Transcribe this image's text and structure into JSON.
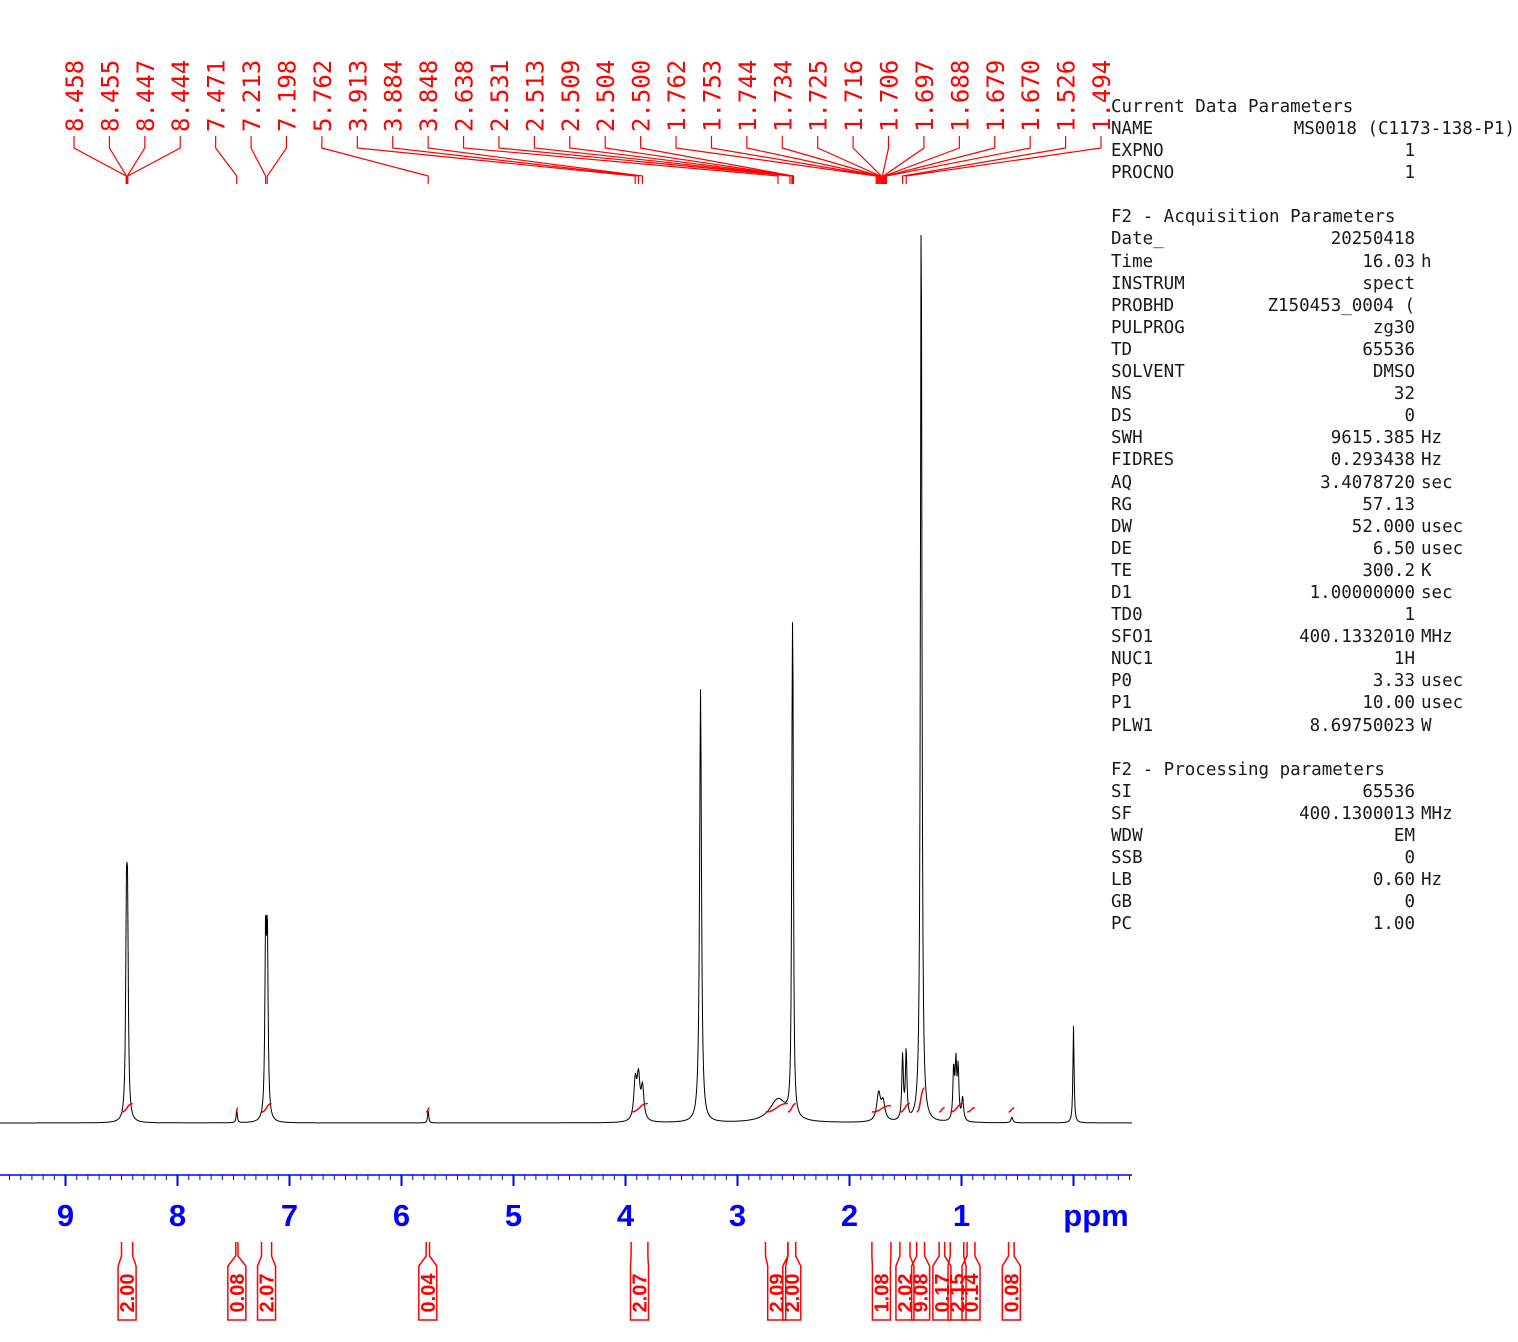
{
  "chart_data": {
    "type": "line",
    "title": "",
    "xlabel": "ppm",
    "ylabel": "",
    "xlim": [
      9.5,
      -0.5
    ],
    "x_ticks": [
      9,
      8,
      7,
      6,
      5,
      4,
      3,
      2,
      1
    ],
    "x_tick_labels": [
      "9",
      "8",
      "7",
      "6",
      "5",
      "4",
      "3",
      "2",
      "1"
    ],
    "peak_labels": [
      "8.458",
      "8.455",
      "8.447",
      "8.444",
      "7.471",
      "7.213",
      "7.198",
      "5.762",
      "3.913",
      "3.884",
      "3.848",
      "2.638",
      "2.531",
      "2.513",
      "2.509",
      "2.504",
      "2.500",
      "1.762",
      "1.753",
      "1.744",
      "1.734",
      "1.725",
      "1.716",
      "1.706",
      "1.697",
      "1.688",
      "1.679",
      "1.670",
      "1.526",
      "1.494"
    ],
    "peaks": [
      {
        "ppm": 8.456,
        "height": 0.195,
        "width": 0.008
      },
      {
        "ppm": 8.446,
        "height": 0.198,
        "width": 0.008
      },
      {
        "ppm": 7.471,
        "height": 0.014,
        "width": 0.006
      },
      {
        "ppm": 7.213,
        "height": 0.192,
        "width": 0.008
      },
      {
        "ppm": 7.198,
        "height": 0.189,
        "width": 0.008
      },
      {
        "ppm": 5.762,
        "height": 0.014,
        "width": 0.006
      },
      {
        "ppm": 3.913,
        "height": 0.042,
        "width": 0.015
      },
      {
        "ppm": 3.884,
        "height": 0.045,
        "width": 0.015
      },
      {
        "ppm": 3.848,
        "height": 0.035,
        "width": 0.015
      },
      {
        "ppm": 3.33,
        "height": 0.47,
        "width": 0.01
      },
      {
        "ppm": 2.638,
        "height": 0.025,
        "width": 0.09
      },
      {
        "ppm": 2.513,
        "height": 0.175,
        "width": 0.006
      },
      {
        "ppm": 2.509,
        "height": 0.265,
        "width": 0.006
      },
      {
        "ppm": 2.504,
        "height": 0.25,
        "width": 0.006
      },
      {
        "ppm": 1.74,
        "height": 0.03,
        "width": 0.02
      },
      {
        "ppm": 1.7,
        "height": 0.02,
        "width": 0.02
      },
      {
        "ppm": 1.526,
        "height": 0.07,
        "width": 0.008
      },
      {
        "ppm": 1.494,
        "height": 0.075,
        "width": 0.008
      },
      {
        "ppm": 1.36,
        "height": 1.0,
        "width": 0.008
      },
      {
        "ppm": 1.07,
        "height": 0.055,
        "width": 0.008
      },
      {
        "ppm": 1.05,
        "height": 0.06,
        "width": 0.008
      },
      {
        "ppm": 1.03,
        "height": 0.055,
        "width": 0.008
      },
      {
        "ppm": 0.99,
        "height": 0.025,
        "width": 0.01
      },
      {
        "ppm": 0.55,
        "height": 0.006,
        "width": 0.01
      },
      {
        "ppm": 0.0,
        "height": 0.105,
        "width": 0.006
      }
    ],
    "integrals": [
      {
        "from": 8.5,
        "to": 8.4,
        "value": "2.00"
      },
      {
        "from": 7.48,
        "to": 7.46,
        "value": "0.08"
      },
      {
        "from": 7.25,
        "to": 7.16,
        "value": "2.07"
      },
      {
        "from": 5.78,
        "to": 5.75,
        "value": "0.04"
      },
      {
        "from": 3.95,
        "to": 3.8,
        "value": "2.07"
      },
      {
        "from": 2.75,
        "to": 2.55,
        "value": "2.09"
      },
      {
        "from": 2.55,
        "to": 2.48,
        "value": "2.00"
      },
      {
        "from": 1.8,
        "to": 1.63,
        "value": "1.08"
      },
      {
        "from": 1.55,
        "to": 1.46,
        "value": "2.02"
      },
      {
        "from": 1.4,
        "to": 1.33,
        "value": "9.08"
      },
      {
        "from": 1.2,
        "to": 1.15,
        "value": "0.17"
      },
      {
        "from": 1.1,
        "to": 0.98,
        "value": "2.15"
      },
      {
        "from": 0.95,
        "to": 0.88,
        "value": "0.14"
      },
      {
        "from": 0.58,
        "to": 0.53,
        "value": "0.08"
      }
    ],
    "colors": {
      "spectrum": "#000000",
      "annotation": "#ff0000",
      "axis": "#0000ff",
      "params": "#1a1a1a"
    }
  },
  "parameters": {
    "groups": [
      {
        "heading": "Current Data Parameters",
        "rows": [
          {
            "key": "NAME",
            "value": "MS0018 (C1173-138-P1)",
            "unit": ""
          },
          {
            "key": "EXPNO",
            "value": "1",
            "unit": ""
          },
          {
            "key": "PROCNO",
            "value": "1",
            "unit": ""
          }
        ]
      },
      {
        "heading": "F2 - Acquisition Parameters",
        "rows": [
          {
            "key": "Date_",
            "value": "20250418",
            "unit": ""
          },
          {
            "key": "Time",
            "value": "16.03",
            "unit": "h"
          },
          {
            "key": "INSTRUM",
            "value": "spect",
            "unit": ""
          },
          {
            "key": "PROBHD",
            "value": "Z150453_0004 (",
            "unit": ""
          },
          {
            "key": "PULPROG",
            "value": "zg30",
            "unit": ""
          },
          {
            "key": "TD",
            "value": "65536",
            "unit": ""
          },
          {
            "key": "SOLVENT",
            "value": "DMSO",
            "unit": ""
          },
          {
            "key": "NS",
            "value": "32",
            "unit": ""
          },
          {
            "key": "DS",
            "value": "0",
            "unit": ""
          },
          {
            "key": "SWH",
            "value": "9615.385",
            "unit": "Hz"
          },
          {
            "key": "FIDRES",
            "value": "0.293438",
            "unit": "Hz"
          },
          {
            "key": "AQ",
            "value": "3.4078720",
            "unit": "sec"
          },
          {
            "key": "RG",
            "value": "57.13",
            "unit": ""
          },
          {
            "key": "DW",
            "value": "52.000",
            "unit": "usec"
          },
          {
            "key": "DE",
            "value": "6.50",
            "unit": "usec"
          },
          {
            "key": "TE",
            "value": "300.2",
            "unit": "K"
          },
          {
            "key": "D1",
            "value": "1.00000000",
            "unit": "sec"
          },
          {
            "key": "TD0",
            "value": "1",
            "unit": ""
          },
          {
            "key": "SFO1",
            "value": "400.1332010",
            "unit": "MHz"
          },
          {
            "key": "NUC1",
            "value": "1H",
            "unit": ""
          },
          {
            "key": "P0",
            "value": "3.33",
            "unit": "usec"
          },
          {
            "key": "P1",
            "value": "10.00",
            "unit": "usec"
          },
          {
            "key": "PLW1",
            "value": "8.69750023",
            "unit": "W"
          }
        ]
      },
      {
        "heading": "F2 - Processing parameters",
        "rows": [
          {
            "key": "SI",
            "value": "65536",
            "unit": ""
          },
          {
            "key": "SF",
            "value": "400.1300013",
            "unit": "MHz"
          },
          {
            "key": "WDW",
            "value": "EM",
            "unit": ""
          },
          {
            "key": "SSB",
            "value": "0",
            "unit": ""
          },
          {
            "key": "LB",
            "value": "0.60",
            "unit": "Hz"
          },
          {
            "key": "GB",
            "value": "0",
            "unit": ""
          },
          {
            "key": "PC",
            "value": "1.00",
            "unit": ""
          }
        ]
      }
    ]
  }
}
